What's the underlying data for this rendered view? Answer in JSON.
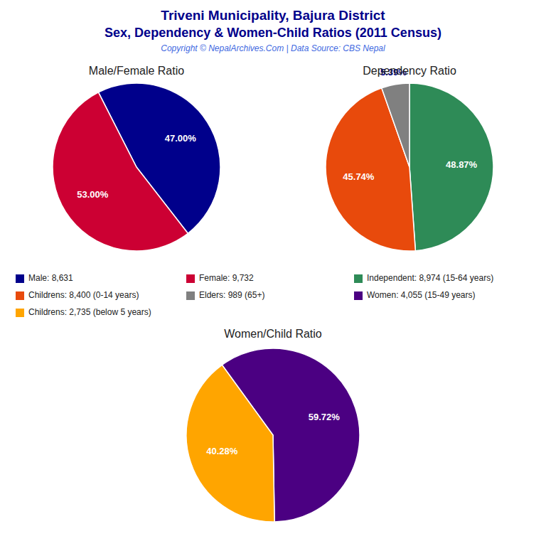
{
  "title": "Triveni Municipality, Bajura District",
  "subtitle": "Sex, Dependency & Women-Child Ratios (2011 Census)",
  "annotations": [
    "Copyright © NepalArchives.Com | Data Source: CBS Nepal"
  ],
  "chart_data": [
    {
      "type": "pie",
      "title": "Male/Female Ratio",
      "categories": [
        "Male: 8,631",
        "Female: 9,732"
      ],
      "values": [
        47.0,
        53.0
      ],
      "value_labels": [
        "47.00%",
        "53.00%"
      ],
      "colors": [
        "#00008B",
        "#CC0033"
      ],
      "data_labels": true
    },
    {
      "type": "pie",
      "title": "Dependency Ratio",
      "categories": [
        "Independent: 8,974 (15-64 years)",
        "Childrens: 8,400 (0-14 years)",
        "Elders: 989 (65+)"
      ],
      "values": [
        48.87,
        45.74,
        5.39
      ],
      "value_labels": [
        "48.87%",
        "45.74%",
        "5.39%"
      ],
      "colors": [
        "#2E8B57",
        "#E84A0C",
        "#808080"
      ],
      "data_labels": true
    },
    {
      "type": "pie",
      "title": "Women/Child Ratio",
      "categories": [
        "Women: 4,055 (15-49 years)",
        "Childrens: 2,735 (below 5 years)"
      ],
      "values": [
        59.72,
        40.28
      ],
      "value_labels": [
        "59.72%",
        "40.28%"
      ],
      "colors": [
        "#4B0082",
        "#FFA500"
      ],
      "data_labels": true
    }
  ]
}
